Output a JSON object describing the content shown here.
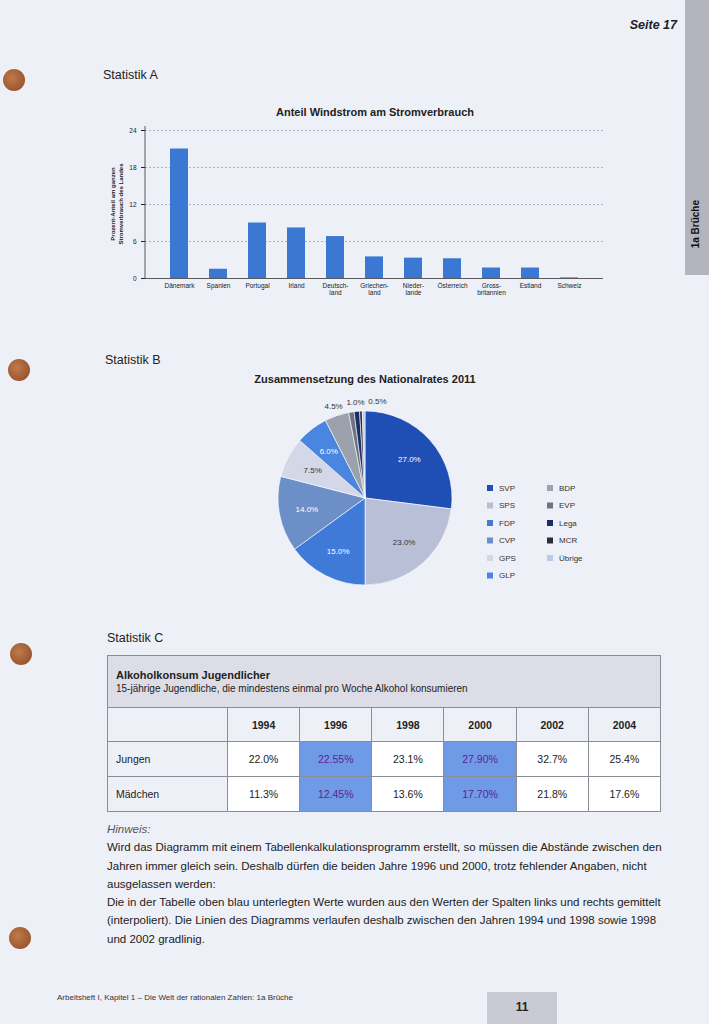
{
  "page": {
    "header": "Seite 17",
    "tab": "1a Brüche",
    "footer": "Arbeitsheft I, Kapitel 1 – Die Welt der rationalen Zahlen: 1a Brüche",
    "page_number": "11"
  },
  "sections": [
    "Statistik A",
    "Statistik B",
    "Statistik C"
  ],
  "chart_data": [
    {
      "type": "bar",
      "title": "Anteil Windstrom am Stromverbrauch",
      "y_label": "Prozent-Anteil am ganzen Stromverbrauch des Landes",
      "categories": [
        "Dänemark",
        "Spanien",
        "Portugal",
        "Irland",
        "Deutsch-\nland",
        "Griechen-\nland",
        "Nieder-\nlande",
        "Österreich",
        "Gross-\nbritannien",
        "Estland",
        "Schweiz"
      ],
      "values": [
        21,
        1.5,
        9,
        8.2,
        6.8,
        3.5,
        3.3,
        3.2,
        1.7,
        1.7,
        0.1
      ],
      "color": "#3a78d4",
      "ylim": [
        0,
        24
      ],
      "yticks": [
        0,
        6,
        12,
        18,
        24
      ],
      "grid": true
    },
    {
      "type": "pie",
      "title": "Zusammensetzung des Nationalrates 2011",
      "categories": [
        "SVP",
        "SPS",
        "FDP",
        "CVP",
        "GPS",
        "GLP",
        "BDP",
        "EVP",
        "Lega",
        "MCR",
        "Übrige"
      ],
      "values": [
        27.0,
        23.0,
        15.0,
        14.0,
        7.5,
        6.0,
        4.5,
        1.0,
        1.0,
        0.5,
        0.5
      ],
      "value_labels": [
        "27.0%",
        "23.0%",
        "15.0%",
        "14.0%",
        "7.5%",
        "6.0%",
        "4.5%",
        "1.0%",
        null,
        null,
        "0.5%"
      ],
      "colors": [
        "#1f4fb4",
        "#b9bfd6",
        "#3f7ad8",
        "#6c8fc8",
        "#d3d7e8",
        "#4a86e0",
        "#9ca1ae",
        "#6e7380",
        "#1a2d6b",
        "#2b2f3a",
        "#b9c9ee"
      ],
      "legend": "right",
      "data_labels": true
    }
  ],
  "table": {
    "title": "Alkoholkonsum Jugendlicher",
    "subtitle": "15-jährige Jugendliche, die mindestens einmal pro Woche Alkohol konsumieren",
    "columns": [
      1994,
      1996,
      1998,
      2000,
      2002,
      2004
    ],
    "rows": [
      {
        "label": "Jungen",
        "cells": [
          "22.0%",
          "22.55%",
          "23.1%",
          "27.90%",
          "32.7%",
          "25.4%"
        ]
      },
      {
        "label": "Mädchen",
        "cells": [
          "11.3%",
          "12.45%",
          "13.6%",
          "17.70%",
          "21.8%",
          "17.6%"
        ]
      }
    ],
    "highlight_columns": [
      1996,
      2000
    ],
    "highlight_color": "#6f9ae6"
  },
  "note": {
    "title": "Hinweis:",
    "paragraphs": [
      "Wird das Diagramm mit einem Tabellenkalkulationsprogramm erstellt, so müssen die Abstände zwischen den Jahren immer gleich sein. Deshalb dürfen die beiden Jahre 1996 und 2000, trotz fehlender Angaben, nicht ausgelassen werden:",
      "Die in der Tabelle oben blau unterlegten Werte wurden aus den Werten der Spalten links und rechts gemittelt (interpoliert). Die Linien des Diagramms verlaufen deshalb zwischen den Jahren 1994 und 1998 sowie 1998 und 2002 gradlinig."
    ]
  }
}
